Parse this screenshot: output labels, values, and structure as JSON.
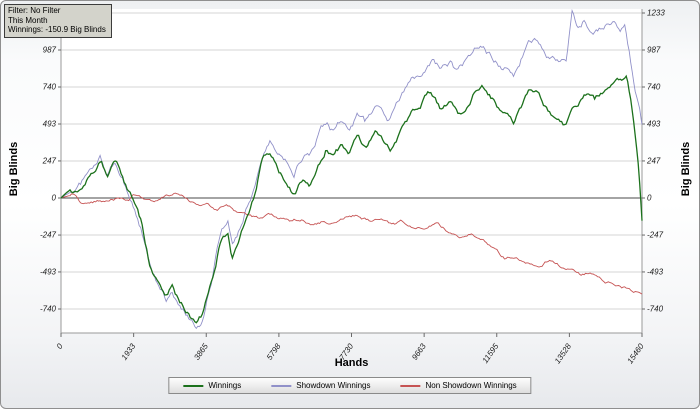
{
  "filter_box": {
    "lines": [
      "Filter: No Filter",
      "This Month",
      "Winnings: -150.9 Big Blinds"
    ]
  },
  "axes": {
    "y_left_label": "Big Blinds",
    "y_right_label": "Big Blinds",
    "x_label": "Hands"
  },
  "legend": {
    "items": [
      {
        "label": "Winnings",
        "color": "#1c711c"
      },
      {
        "label": "Showdown Winnings",
        "color": "#9191c9"
      },
      {
        "label": "Non Showdown Winnings",
        "color": "#c65454"
      }
    ]
  },
  "chart_data": {
    "type": "line",
    "title": "",
    "xlabel": "Hands",
    "ylabel": "Big Blinds",
    "xlim": [
      0,
      15460
    ],
    "ylim": [
      -900,
      1260
    ],
    "grid": "horizontal",
    "legend_position": "bottom",
    "x_ticks": [
      0,
      1933,
      3865,
      5798,
      7730,
      9663,
      11595,
      13528,
      15460
    ],
    "y_ticks_left": [
      987,
      740,
      493,
      247,
      0,
      -247,
      -493,
      -740
    ],
    "y_ticks_right": [
      1233,
      987,
      740,
      493,
      247,
      0,
      -247,
      -493,
      -740
    ],
    "series": [
      {
        "name": "Showdown Winnings",
        "color": "#9191c9",
        "width": 0.9,
        "jitter": 36,
        "points": [
          [
            0,
            0
          ],
          [
            250,
            40
          ],
          [
            500,
            90
          ],
          [
            800,
            180
          ],
          [
            1050,
            260
          ],
          [
            1250,
            150
          ],
          [
            1450,
            240
          ],
          [
            1700,
            90
          ],
          [
            1933,
            -50
          ],
          [
            2150,
            -220
          ],
          [
            2350,
            -460
          ],
          [
            2600,
            -600
          ],
          [
            2800,
            -690
          ],
          [
            2950,
            -640
          ],
          [
            3150,
            -750
          ],
          [
            3400,
            -800
          ],
          [
            3600,
            -860
          ],
          [
            3750,
            -810
          ],
          [
            3865,
            -690
          ],
          [
            4050,
            -500
          ],
          [
            4250,
            -240
          ],
          [
            4450,
            -170
          ],
          [
            4550,
            -320
          ],
          [
            4750,
            -200
          ],
          [
            4950,
            -40
          ],
          [
            5150,
            80
          ],
          [
            5350,
            290
          ],
          [
            5550,
            380
          ],
          [
            5798,
            300
          ],
          [
            6000,
            260
          ],
          [
            6200,
            190
          ],
          [
            6450,
            300
          ],
          [
            6650,
            290
          ],
          [
            6850,
            400
          ],
          [
            7050,
            490
          ],
          [
            7250,
            430
          ],
          [
            7450,
            510
          ],
          [
            7650,
            420
          ],
          [
            7900,
            550
          ],
          [
            8100,
            490
          ],
          [
            8350,
            610
          ],
          [
            8550,
            570
          ],
          [
            8750,
            520
          ],
          [
            8950,
            630
          ],
          [
            9150,
            710
          ],
          [
            9350,
            790
          ],
          [
            9550,
            830
          ],
          [
            9750,
            910
          ],
          [
            9900,
            940
          ],
          [
            10100,
            860
          ],
          [
            10350,
            910
          ],
          [
            10550,
            830
          ],
          [
            10750,
            880
          ],
          [
            11000,
            970
          ],
          [
            11200,
            1010
          ],
          [
            11450,
            940
          ],
          [
            11650,
            890
          ],
          [
            11850,
            870
          ],
          [
            12050,
            810
          ],
          [
            12250,
            930
          ],
          [
            12450,
            1010
          ],
          [
            12650,
            1050
          ],
          [
            12850,
            970
          ],
          [
            13050,
            930
          ],
          [
            13250,
            890
          ],
          [
            13450,
            900
          ],
          [
            13600,
            1230
          ],
          [
            13750,
            1090
          ],
          [
            13900,
            1160
          ],
          [
            14100,
            1060
          ],
          [
            14300,
            1110
          ],
          [
            14500,
            1150
          ],
          [
            14700,
            1190
          ],
          [
            14850,
            1090
          ],
          [
            15000,
            1140
          ],
          [
            15100,
            990
          ],
          [
            15200,
            840
          ],
          [
            15300,
            700
          ],
          [
            15400,
            600
          ],
          [
            15460,
            490
          ]
        ]
      },
      {
        "name": "Non Showdown Winnings",
        "color": "#c65454",
        "width": 0.9,
        "jitter": 16,
        "points": [
          [
            0,
            0
          ],
          [
            300,
            15
          ],
          [
            600,
            -50
          ],
          [
            900,
            -30
          ],
          [
            1200,
            -15
          ],
          [
            1500,
            -5
          ],
          [
            1800,
            -25
          ],
          [
            1933,
            25
          ],
          [
            2200,
            -15
          ],
          [
            2500,
            -35
          ],
          [
            2800,
            25
          ],
          [
            3100,
            35
          ],
          [
            3400,
            -15
          ],
          [
            3700,
            -55
          ],
          [
            3865,
            -35
          ],
          [
            4100,
            -85
          ],
          [
            4400,
            -60
          ],
          [
            4700,
            -100
          ],
          [
            5000,
            -110
          ],
          [
            5300,
            -140
          ],
          [
            5600,
            -125
          ],
          [
            5798,
            -150
          ],
          [
            6100,
            -160
          ],
          [
            6400,
            -135
          ],
          [
            6700,
            -175
          ],
          [
            7000,
            -150
          ],
          [
            7300,
            -170
          ],
          [
            7600,
            -130
          ],
          [
            7900,
            -120
          ],
          [
            8200,
            -155
          ],
          [
            8500,
            -140
          ],
          [
            8800,
            -180
          ],
          [
            9100,
            -160
          ],
          [
            9400,
            -195
          ],
          [
            9700,
            -180
          ],
          [
            10000,
            -160
          ],
          [
            10300,
            -220
          ],
          [
            10600,
            -255
          ],
          [
            10900,
            -235
          ],
          [
            11200,
            -275
          ],
          [
            11500,
            -320
          ],
          [
            11800,
            -395
          ],
          [
            12100,
            -380
          ],
          [
            12400,
            -420
          ],
          [
            12700,
            -440
          ],
          [
            13000,
            -400
          ],
          [
            13300,
            -455
          ],
          [
            13528,
            -480
          ],
          [
            13800,
            -515
          ],
          [
            14100,
            -500
          ],
          [
            14400,
            -555
          ],
          [
            14700,
            -575
          ],
          [
            15000,
            -600
          ],
          [
            15200,
            -615
          ],
          [
            15380,
            -628
          ],
          [
            15460,
            -641
          ]
        ]
      },
      {
        "name": "Winnings",
        "color": "#1c711c",
        "width": 1.3,
        "jitter": 30,
        "points": [
          [
            0,
            0
          ],
          [
            250,
            60
          ],
          [
            500,
            30
          ],
          [
            800,
            150
          ],
          [
            1050,
            245
          ],
          [
            1250,
            140
          ],
          [
            1450,
            230
          ],
          [
            1700,
            80
          ],
          [
            1933,
            -20
          ],
          [
            2150,
            -180
          ],
          [
            2350,
            -420
          ],
          [
            2600,
            -560
          ],
          [
            2800,
            -640
          ],
          [
            2950,
            -590
          ],
          [
            3150,
            -700
          ],
          [
            3400,
            -760
          ],
          [
            3600,
            -830
          ],
          [
            3750,
            -780
          ],
          [
            3865,
            -690
          ],
          [
            4050,
            -520
          ],
          [
            4250,
            -280
          ],
          [
            4450,
            -230
          ],
          [
            4550,
            -400
          ],
          [
            4750,
            -290
          ],
          [
            4950,
            -130
          ],
          [
            5150,
            30
          ],
          [
            5350,
            250
          ],
          [
            5550,
            300
          ],
          [
            5798,
            190
          ],
          [
            6000,
            110
          ],
          [
            6200,
            30
          ],
          [
            6450,
            130
          ],
          [
            6650,
            90
          ],
          [
            6850,
            210
          ],
          [
            7050,
            330
          ],
          [
            7250,
            280
          ],
          [
            7450,
            340
          ],
          [
            7650,
            260
          ],
          [
            7900,
            390
          ],
          [
            8100,
            320
          ],
          [
            8350,
            430
          ],
          [
            8550,
            380
          ],
          [
            8750,
            310
          ],
          [
            8950,
            410
          ],
          [
            9150,
            490
          ],
          [
            9350,
            570
          ],
          [
            9550,
            610
          ],
          [
            9750,
            700
          ],
          [
            9900,
            660
          ],
          [
            10100,
            580
          ],
          [
            10350,
            650
          ],
          [
            10550,
            560
          ],
          [
            10750,
            610
          ],
          [
            11000,
            710
          ],
          [
            11200,
            745
          ],
          [
            11450,
            670
          ],
          [
            11650,
            590
          ],
          [
            11850,
            550
          ],
          [
            12050,
            490
          ],
          [
            12250,
            600
          ],
          [
            12450,
            690
          ],
          [
            12650,
            700
          ],
          [
            12850,
            610
          ],
          [
            13050,
            550
          ],
          [
            13250,
            490
          ],
          [
            13450,
            470
          ],
          [
            13600,
            560
          ],
          [
            13800,
            640
          ],
          [
            14000,
            690
          ],
          [
            14200,
            650
          ],
          [
            14400,
            710
          ],
          [
            14600,
            760
          ],
          [
            14800,
            810
          ],
          [
            14950,
            780
          ],
          [
            15050,
            820
          ],
          [
            15150,
            690
          ],
          [
            15250,
            480
          ],
          [
            15350,
            260
          ],
          [
            15420,
            30
          ],
          [
            15460,
            -151
          ]
        ]
      }
    ]
  }
}
